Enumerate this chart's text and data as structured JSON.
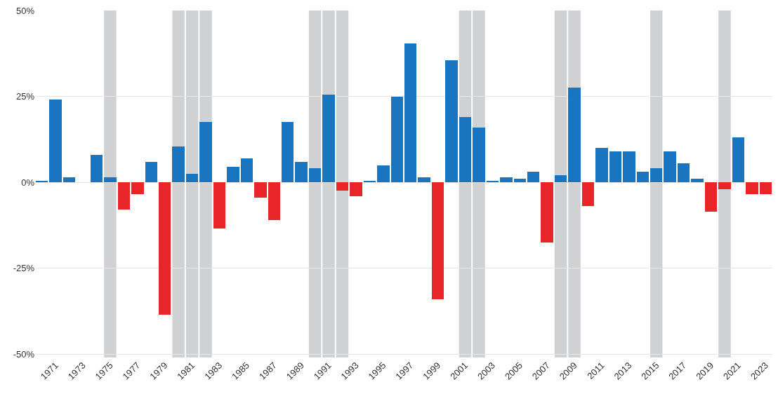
{
  "chart_data": {
    "type": "bar",
    "x": [
      1970,
      1971,
      1972,
      1973,
      1974,
      1975,
      1976,
      1977,
      1978,
      1979,
      1980,
      1981,
      1982,
      1983,
      1984,
      1985,
      1986,
      1987,
      1988,
      1989,
      1990,
      1991,
      1992,
      1993,
      1994,
      1995,
      1996,
      1997,
      1998,
      1999,
      2000,
      2001,
      2002,
      2003,
      2004,
      2005,
      2006,
      2007,
      2008,
      2009,
      2010,
      2011,
      2012,
      2013,
      2014,
      2015,
      2016,
      2017,
      2018,
      2019,
      2020,
      2021,
      2022,
      2023
    ],
    "values": [
      0.5,
      24,
      1.5,
      0,
      8,
      1.5,
      -8,
      -3.5,
      6,
      -38.5,
      10.5,
      2.5,
      17.5,
      -13.5,
      4.5,
      7,
      -4.5,
      -11,
      17.5,
      6,
      4,
      25.5,
      -2.5,
      -4,
      0.5,
      5,
      25,
      40.5,
      1.5,
      -34,
      35.5,
      19,
      16,
      0.5,
      1.5,
      1,
      3,
      -17.5,
      2,
      27.5,
      -7,
      10,
      9,
      9,
      3,
      4,
      9,
      5.5,
      1,
      -8.5,
      -2,
      13,
      -3.5,
      -3.5
    ],
    "colors": [
      "#1a75c0",
      "#1a75c0",
      "#1a75c0",
      "#1a75c0",
      "#1a75c0",
      "#1a75c0",
      "#e8262a",
      "#e8262a",
      "#1a75c0",
      "#e8262a",
      "#1a75c0",
      "#1a75c0",
      "#1a75c0",
      "#e8262a",
      "#1a75c0",
      "#1a75c0",
      "#e8262a",
      "#e8262a",
      "#1a75c0",
      "#1a75c0",
      "#1a75c0",
      "#1a75c0",
      "#e8262a",
      "#e8262a",
      "#1a75c0",
      "#1a75c0",
      "#1a75c0",
      "#1a75c0",
      "#1a75c0",
      "#e8262a",
      "#1a75c0",
      "#1a75c0",
      "#1a75c0",
      "#1a75c0",
      "#1a75c0",
      "#1a75c0",
      "#1a75c0",
      "#e8262a",
      "#1a75c0",
      "#1a75c0",
      "#e8262a",
      "#1a75c0",
      "#1a75c0",
      "#1a75c0",
      "#1a75c0",
      "#1a75c0",
      "#1a75c0",
      "#1a75c0",
      "#1a75c0",
      "#e8262a",
      "#e8262a",
      "#1a75c0",
      "#e8262a",
      "#e8262a"
    ],
    "xlim": [
      1969.5,
      2023.5
    ],
    "xticks": [
      1971,
      1973,
      1975,
      1977,
      1979,
      1981,
      1983,
      1985,
      1987,
      1989,
      1991,
      1993,
      1995,
      1997,
      1999,
      2001,
      2003,
      2005,
      2007,
      2009,
      2011,
      2013,
      2015,
      2017,
      2019,
      2021,
      2023
    ],
    "ylim": [
      -51,
      50
    ],
    "yticks": [
      {
        "value": -50,
        "label": "-50%"
      },
      {
        "value": -25,
        "label": "-25%"
      },
      {
        "value": 0,
        "label": "0%"
      },
      {
        "value": 25,
        "label": "25%"
      },
      {
        "value": 50,
        "label": "50%"
      }
    ],
    "grid": "y",
    "bands": [
      {
        "axis": "x",
        "from": 1974.55,
        "to": 1975.45,
        "color": "#d0d1d3"
      },
      {
        "axis": "x",
        "from": 1979.55,
        "to": 1980.45,
        "color": "#d0d1d3"
      },
      {
        "axis": "x",
        "from": 1980.55,
        "to": 1981.45,
        "color": "#d0d1d3"
      },
      {
        "axis": "x",
        "from": 1981.55,
        "to": 1982.45,
        "color": "#d0d1d3"
      },
      {
        "axis": "x",
        "from": 1989.55,
        "to": 1990.45,
        "color": "#d0d1d3"
      },
      {
        "axis": "x",
        "from": 1990.55,
        "to": 1991.45,
        "color": "#d0d1d3"
      },
      {
        "axis": "x",
        "from": 1991.55,
        "to": 1992.45,
        "color": "#d0d1d3"
      },
      {
        "axis": "x",
        "from": 2000.55,
        "to": 2001.45,
        "color": "#d0d1d3"
      },
      {
        "axis": "x",
        "from": 2001.55,
        "to": 2002.45,
        "color": "#d0d1d3"
      },
      {
        "axis": "x",
        "from": 2007.55,
        "to": 2008.45,
        "color": "#d0d1d3"
      },
      {
        "axis": "x",
        "from": 2008.55,
        "to": 2009.45,
        "color": "#d0d1d3"
      },
      {
        "axis": "x",
        "from": 2014.55,
        "to": 2015.45,
        "color": "#d0d1d3"
      },
      {
        "axis": "x",
        "from": 2019.55,
        "to": 2020.45,
        "color": "#d0d1d3"
      }
    ]
  }
}
